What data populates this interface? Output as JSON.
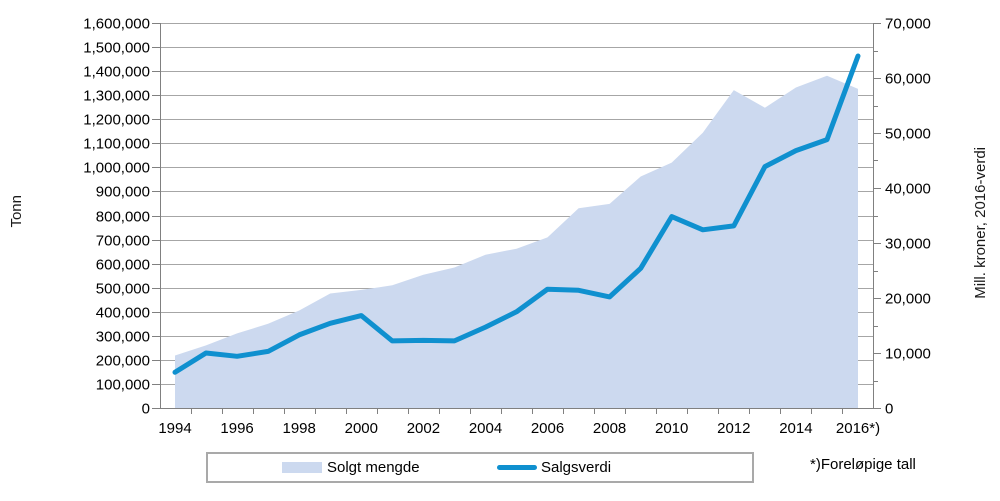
{
  "chart_data": {
    "type": "area",
    "title": "",
    "x": [
      1994,
      1995,
      1996,
      1997,
      1998,
      1999,
      2000,
      2001,
      2002,
      2003,
      2004,
      2005,
      2006,
      2007,
      2008,
      2009,
      2010,
      2011,
      2012,
      2013,
      2014,
      2015,
      2016
    ],
    "x_tick_labels": [
      "1994",
      "1996",
      "1998",
      "2000",
      "2002",
      "2004",
      "2006",
      "2008",
      "2010",
      "2012",
      "2014",
      "2016*)"
    ],
    "series": [
      {
        "name": "Solgt mengde",
        "type": "area",
        "axis": "left",
        "color": "#ccd9ef",
        "values": [
          218000,
          260000,
          310000,
          350000,
          405000,
          476000,
          491000,
          510000,
          554000,
          584000,
          637000,
          662000,
          709000,
          830000,
          848000,
          962000,
          1020000,
          1144000,
          1321000,
          1248000,
          1332000,
          1381000,
          1326000
        ]
      },
      {
        "name": "Salgsverdi",
        "type": "line",
        "axis": "right",
        "color": "#0f90cf",
        "values": [
          6500,
          10000,
          9400,
          10300,
          13300,
          15400,
          16800,
          12200,
          12300,
          12200,
          14700,
          17500,
          21600,
          21400,
          20200,
          25400,
          34800,
          32400,
          33100,
          43900,
          46800,
          48800,
          64000
        ]
      }
    ],
    "left_axis": {
      "label": "Tonn",
      "min": 0,
      "max": 1600000,
      "tick_step": 100000
    },
    "right_axis": {
      "label": "Mill. kroner, 2016-verdi",
      "min": 0,
      "max": 70000,
      "tick_step": 10000,
      "minor_tick_step": 5000
    },
    "grid": true,
    "legend_position": "bottom",
    "footnote": "*)Foreløpige tall",
    "colors": {
      "gridline": "#a6a6a6",
      "axis": "#808080",
      "text": "#000000"
    }
  }
}
